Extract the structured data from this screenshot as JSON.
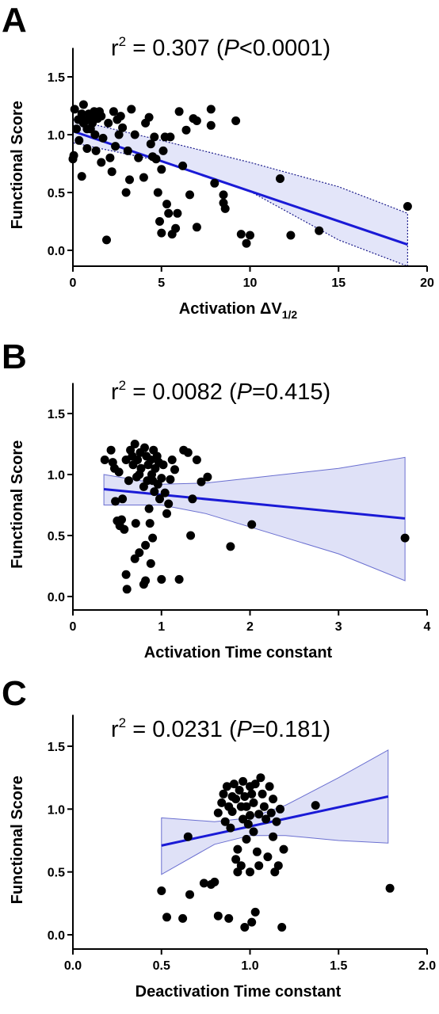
{
  "chart_data": [
    {
      "type": "scatter",
      "panel_label": "A",
      "annotation": {
        "pre": "r",
        "sup": "2",
        "value": " = 0.307 (",
        "p_letter": "P",
        "p_text": "<0.0001)"
      },
      "xlabel": "Activation ΔV",
      "xlabel_sub": "1/2",
      "ylabel": "Functional Score",
      "xlim": [
        0,
        20
      ],
      "ylim": [
        -0.05,
        1.75
      ],
      "xticks": [
        0,
        5,
        10,
        15,
        20
      ],
      "xtick_labels": [
        "0",
        "5",
        "10",
        "15",
        "20"
      ],
      "yticks": [
        0.0,
        0.5,
        1.0,
        1.5
      ],
      "ytick_labels": [
        "0.0",
        "0.5",
        "1.0",
        "1.5"
      ],
      "grid": false,
      "regression": {
        "x": [
          0,
          18.9
        ],
        "y": [
          1.03,
          0.05
        ]
      },
      "ci_band_style": "dotted",
      "ci_band": {
        "x": [
          0,
          5,
          10,
          15,
          18.9
        ],
        "upper": [
          1.13,
          0.95,
          0.76,
          0.55,
          0.32
        ],
        "lower": [
          0.93,
          0.77,
          0.51,
          0.09,
          -0.28
        ]
      },
      "points": [
        [
          0.0,
          0.79
        ],
        [
          0.05,
          0.82
        ],
        [
          0.1,
          1.22
        ],
        [
          0.2,
          1.05
        ],
        [
          0.3,
          1.13
        ],
        [
          0.35,
          0.95
        ],
        [
          0.5,
          1.18
        ],
        [
          0.6,
          1.26
        ],
        [
          0.6,
          1.1
        ],
        [
          0.7,
          1.12
        ],
        [
          0.8,
          1.05
        ],
        [
          0.5,
          0.64
        ],
        [
          0.8,
          0.88
        ],
        [
          0.9,
          1.18
        ],
        [
          1.0,
          1.15
        ],
        [
          1.0,
          1.05
        ],
        [
          1.1,
          1.1
        ],
        [
          1.2,
          1.2
        ],
        [
          1.25,
          1.0
        ],
        [
          1.3,
          0.86
        ],
        [
          1.4,
          1.14
        ],
        [
          1.5,
          1.2
        ],
        [
          1.6,
          1.16
        ],
        [
          1.6,
          0.76
        ],
        [
          1.7,
          0.97
        ],
        [
          1.9,
          0.09
        ],
        [
          2.0,
          1.1
        ],
        [
          2.1,
          0.8
        ],
        [
          2.2,
          0.68
        ],
        [
          2.3,
          1.2
        ],
        [
          2.4,
          0.9
        ],
        [
          2.5,
          1.13
        ],
        [
          2.6,
          1.0
        ],
        [
          2.7,
          1.16
        ],
        [
          2.8,
          1.06
        ],
        [
          3.0,
          0.5
        ],
        [
          3.1,
          0.86
        ],
        [
          3.2,
          0.61
        ],
        [
          3.3,
          1.22
        ],
        [
          3.5,
          1.0
        ],
        [
          3.7,
          0.8
        ],
        [
          4.0,
          0.63
        ],
        [
          4.1,
          1.1
        ],
        [
          4.3,
          1.15
        ],
        [
          4.4,
          0.92
        ],
        [
          4.5,
          0.81
        ],
        [
          4.6,
          0.98
        ],
        [
          4.7,
          0.79
        ],
        [
          4.8,
          0.5
        ],
        [
          4.9,
          0.25
        ],
        [
          5.0,
          0.7
        ],
        [
          5.0,
          0.15
        ],
        [
          5.1,
          0.86
        ],
        [
          5.2,
          0.98
        ],
        [
          5.3,
          0.4
        ],
        [
          5.4,
          0.32
        ],
        [
          5.5,
          0.98
        ],
        [
          5.6,
          0.14
        ],
        [
          5.8,
          0.19
        ],
        [
          5.9,
          0.32
        ],
        [
          6.0,
          1.2
        ],
        [
          6.2,
          0.73
        ],
        [
          6.4,
          1.04
        ],
        [
          6.6,
          0.48
        ],
        [
          6.8,
          1.14
        ],
        [
          7.0,
          1.12
        ],
        [
          7.0,
          0.2
        ],
        [
          7.8,
          1.22
        ],
        [
          7.8,
          1.08
        ],
        [
          8.0,
          0.58
        ],
        [
          8.5,
          0.48
        ],
        [
          8.5,
          0.41
        ],
        [
          8.6,
          0.36
        ],
        [
          9.2,
          1.12
        ],
        [
          9.5,
          0.14
        ],
        [
          9.8,
          0.06
        ],
        [
          10.0,
          0.13
        ],
        [
          11.7,
          0.62
        ],
        [
          12.3,
          0.13
        ],
        [
          13.9,
          0.17
        ],
        [
          18.9,
          0.38
        ]
      ]
    },
    {
      "type": "scatter",
      "panel_label": "B",
      "annotation": {
        "pre": "r",
        "sup": "2",
        "value": " = 0.0082 (",
        "p_letter": "P",
        "p_text": "=0.415)"
      },
      "xlabel": "Activation Time constant",
      "xlabel_sub": "",
      "ylabel": "Functional Score",
      "xlim": [
        0,
        4
      ],
      "ylim": [
        -0.05,
        1.75
      ],
      "xticks": [
        0,
        1,
        2,
        3,
        4
      ],
      "xtick_labels": [
        "0",
        "1",
        "2",
        "3",
        "4"
      ],
      "yticks": [
        0.0,
        0.5,
        1.0,
        1.5
      ],
      "ytick_labels": [
        "0.0",
        "0.5",
        "1.0",
        "1.5"
      ],
      "grid": false,
      "regression": {
        "x": [
          0.35,
          3.75
        ],
        "y": [
          0.88,
          0.64
        ]
      },
      "ci_band_style": "solid",
      "ci_band": {
        "x": [
          0.35,
          1.0,
          1.5,
          2.0,
          3.0,
          3.75
        ],
        "upper": [
          1.0,
          0.92,
          0.93,
          0.97,
          1.05,
          1.14
        ],
        "lower": [
          0.75,
          0.75,
          0.68,
          0.57,
          0.35,
          0.13
        ]
      },
      "points": [
        [
          0.36,
          1.12
        ],
        [
          0.43,
          1.2
        ],
        [
          0.45,
          1.1
        ],
        [
          0.47,
          1.05
        ],
        [
          0.48,
          0.78
        ],
        [
          0.5,
          0.62
        ],
        [
          0.52,
          1.02
        ],
        [
          0.53,
          0.58
        ],
        [
          0.55,
          0.63
        ],
        [
          0.56,
          0.8
        ],
        [
          0.58,
          0.55
        ],
        [
          0.6,
          1.12
        ],
        [
          0.6,
          0.18
        ],
        [
          0.61,
          0.06
        ],
        [
          0.63,
          0.95
        ],
        [
          0.65,
          1.2
        ],
        [
          0.67,
          1.15
        ],
        [
          0.68,
          1.08
        ],
        [
          0.7,
          1.25
        ],
        [
          0.7,
          0.31
        ],
        [
          0.71,
          0.6
        ],
        [
          0.72,
          0.98
        ],
        [
          0.73,
          1.12
        ],
        [
          0.75,
          1.0
        ],
        [
          0.75,
          0.36
        ],
        [
          0.76,
          1.18
        ],
        [
          0.77,
          1.05
        ],
        [
          0.8,
          0.9
        ],
        [
          0.8,
          0.1
        ],
        [
          0.81,
          1.22
        ],
        [
          0.82,
          0.42
        ],
        [
          0.82,
          0.13
        ],
        [
          0.83,
          1.15
        ],
        [
          0.84,
          0.95
        ],
        [
          0.85,
          1.08
        ],
        [
          0.86,
          0.72
        ],
        [
          0.87,
          0.6
        ],
        [
          0.88,
          1.12
        ],
        [
          0.88,
          0.27
        ],
        [
          0.89,
          1.0
        ],
        [
          0.9,
          0.95
        ],
        [
          0.9,
          0.48
        ],
        [
          0.91,
          1.2
        ],
        [
          0.92,
          0.86
        ],
        [
          0.93,
          1.05
        ],
        [
          0.95,
          1.15
        ],
        [
          0.96,
          0.92
        ],
        [
          0.97,
          1.1
        ],
        [
          0.98,
          0.8
        ],
        [
          1.0,
          0.97
        ],
        [
          1.0,
          0.14
        ],
        [
          1.02,
          1.08
        ],
        [
          1.04,
          0.85
        ],
        [
          1.06,
          0.68
        ],
        [
          1.08,
          0.76
        ],
        [
          1.1,
          0.96
        ],
        [
          1.12,
          1.12
        ],
        [
          1.15,
          1.04
        ],
        [
          1.2,
          0.14
        ],
        [
          1.25,
          1.2
        ],
        [
          1.3,
          1.18
        ],
        [
          1.33,
          0.5
        ],
        [
          1.35,
          0.8
        ],
        [
          1.4,
          1.12
        ],
        [
          1.45,
          0.94
        ],
        [
          1.52,
          0.98
        ],
        [
          1.78,
          0.41
        ],
        [
          2.02,
          0.59
        ],
        [
          3.75,
          0.48
        ]
      ]
    },
    {
      "type": "scatter",
      "panel_label": "C",
      "annotation": {
        "pre": "r",
        "sup": "2",
        "value": " = 0.0231 (",
        "p_letter": "P",
        "p_text": "=0.181)"
      },
      "xlabel": "Deactivation Time constant",
      "xlabel_sub": "",
      "ylabel": "Functional Score",
      "xlim": [
        0,
        2
      ],
      "ylim": [
        -0.05,
        1.75
      ],
      "xticks": [
        0,
        0.5,
        1.0,
        1.5,
        2.0
      ],
      "xtick_labels": [
        "0.0",
        "0.5",
        "1.0",
        "1.5",
        "2.0"
      ],
      "yticks": [
        0.0,
        0.5,
        1.0,
        1.5
      ],
      "ytick_labels": [
        "0.0",
        "0.5",
        "1.0",
        "1.5"
      ],
      "grid": false,
      "regression": {
        "x": [
          0.5,
          1.78
        ],
        "y": [
          0.71,
          1.1
        ]
      },
      "ci_band_style": "solid",
      "ci_band": {
        "x": [
          0.5,
          0.8,
          1.0,
          1.2,
          1.5,
          1.78
        ],
        "upper": [
          0.93,
          0.9,
          0.93,
          1.03,
          1.25,
          1.47
        ],
        "lower": [
          0.48,
          0.72,
          0.79,
          0.79,
          0.75,
          0.73
        ]
      },
      "points": [
        [
          0.5,
          0.35
        ],
        [
          0.53,
          0.14
        ],
        [
          0.62,
          0.13
        ],
        [
          0.65,
          0.78
        ],
        [
          0.66,
          0.32
        ],
        [
          0.74,
          0.41
        ],
        [
          0.78,
          0.4
        ],
        [
          0.8,
          0.42
        ],
        [
          0.82,
          0.15
        ],
        [
          0.82,
          0.97
        ],
        [
          0.84,
          1.05
        ],
        [
          0.85,
          1.12
        ],
        [
          0.86,
          0.9
        ],
        [
          0.87,
          1.18
        ],
        [
          0.88,
          0.13
        ],
        [
          0.88,
          1.02
        ],
        [
          0.89,
          0.85
        ],
        [
          0.9,
          1.1
        ],
        [
          0.9,
          0.98
        ],
        [
          0.91,
          1.2
        ],
        [
          0.92,
          0.6
        ],
        [
          0.92,
          1.08
        ],
        [
          0.93,
          0.5
        ],
        [
          0.93,
          0.68
        ],
        [
          0.94,
          1.15
        ],
        [
          0.95,
          1.02
        ],
        [
          0.95,
          0.55
        ],
        [
          0.96,
          0.92
        ],
        [
          0.96,
          1.22
        ],
        [
          0.97,
          1.1
        ],
        [
          0.97,
          0.06
        ],
        [
          0.98,
          0.76
        ],
        [
          0.98,
          1.02
        ],
        [
          0.99,
          0.88
        ],
        [
          1.0,
          1.18
        ],
        [
          1.0,
          0.95
        ],
        [
          1.0,
          0.5
        ],
        [
          1.01,
          1.12
        ],
        [
          1.01,
          0.1
        ],
        [
          1.02,
          1.05
        ],
        [
          1.02,
          0.82
        ],
        [
          1.03,
          1.2
        ],
        [
          1.03,
          0.18
        ],
        [
          1.04,
          0.66
        ],
        [
          1.05,
          0.55
        ],
        [
          1.05,
          0.96
        ],
        [
          1.06,
          1.25
        ],
        [
          1.07,
          1.12
        ],
        [
          1.08,
          1.02
        ],
        [
          1.09,
          0.92
        ],
        [
          1.1,
          0.62
        ],
        [
          1.11,
          1.18
        ],
        [
          1.12,
          0.97
        ],
        [
          1.13,
          1.08
        ],
        [
          1.13,
          0.78
        ],
        [
          1.14,
          0.5
        ],
        [
          1.15,
          0.9
        ],
        [
          1.16,
          0.55
        ],
        [
          1.17,
          1.0
        ],
        [
          1.18,
          0.06
        ],
        [
          1.19,
          0.68
        ],
        [
          1.37,
          1.03
        ],
        [
          1.79,
          0.37
        ]
      ]
    }
  ]
}
